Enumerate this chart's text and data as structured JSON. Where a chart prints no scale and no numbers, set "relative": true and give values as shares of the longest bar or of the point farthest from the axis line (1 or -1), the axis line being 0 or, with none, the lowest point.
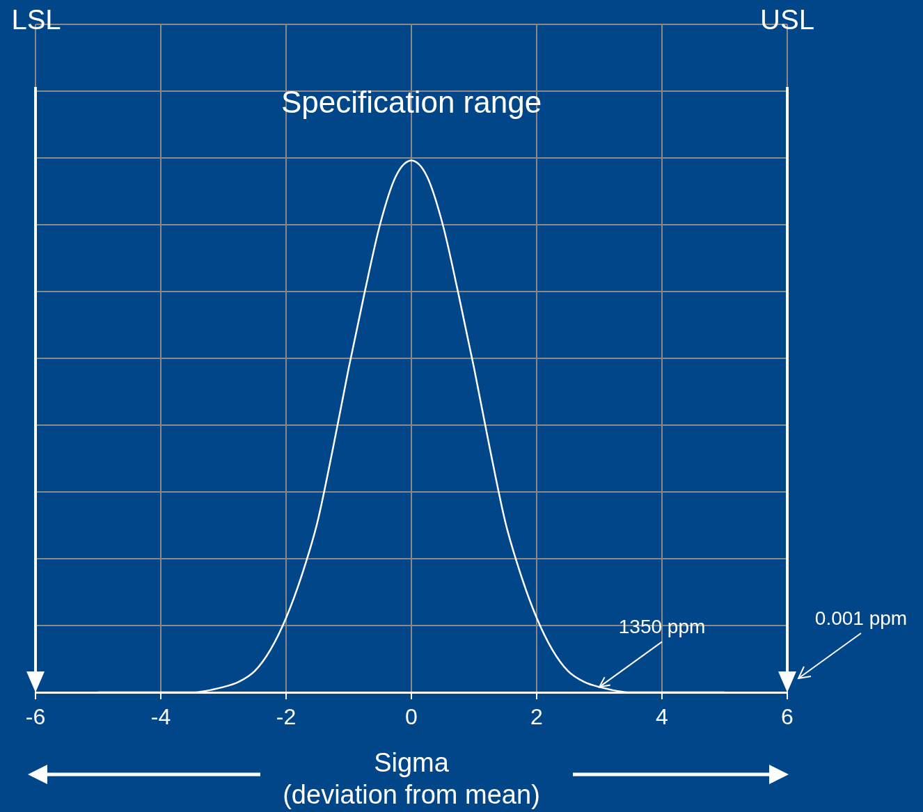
{
  "chart_data": {
    "type": "line",
    "xlabel": "Sigma\n(deviation from mean)",
    "relative": true,
    "x": [
      -5,
      -4.5,
      -4,
      -3.5,
      -3,
      -2.75,
      -2.5,
      -2.25,
      -2,
      -1.75,
      -1.5,
      -1.25,
      -1,
      -0.75,
      -0.5,
      -0.25,
      0,
      0.25,
      0.5,
      0.75,
      1,
      1.25,
      1.5,
      1.75,
      2,
      2.25,
      2.5,
      2.75,
      3,
      3.5,
      4,
      4.5,
      5
    ],
    "series": [
      {
        "color": "#ffffff",
        "values": [
          0,
          0,
          0,
          0,
          0.01,
          0.02,
          0.04,
          0.08,
          0.14,
          0.22,
          0.32,
          0.46,
          0.61,
          0.75,
          0.88,
          0.97,
          1,
          0.97,
          0.88,
          0.75,
          0.61,
          0.46,
          0.32,
          0.22,
          0.14,
          0.08,
          0.04,
          0.02,
          0.01,
          0,
          0,
          0,
          0
        ]
      }
    ],
    "xlim": [
      -6,
      6
    ],
    "xticks": [
      -6,
      -4,
      -2,
      0,
      2,
      4,
      6
    ],
    "grid": true,
    "legend": false,
    "marker": "none",
    "line_style": "solid",
    "ref_lines": [
      {
        "axis": "x",
        "value": -6,
        "label": "LSL",
        "color": "#ffffff"
      },
      {
        "axis": "x",
        "value": 6,
        "label": "USL",
        "color": "#ffffff"
      }
    ],
    "annotations": [
      "Specification range",
      {
        "text": "1350 ppm",
        "x": 3,
        "y": 0.01
      },
      "0.001 ppm"
    ]
  }
}
